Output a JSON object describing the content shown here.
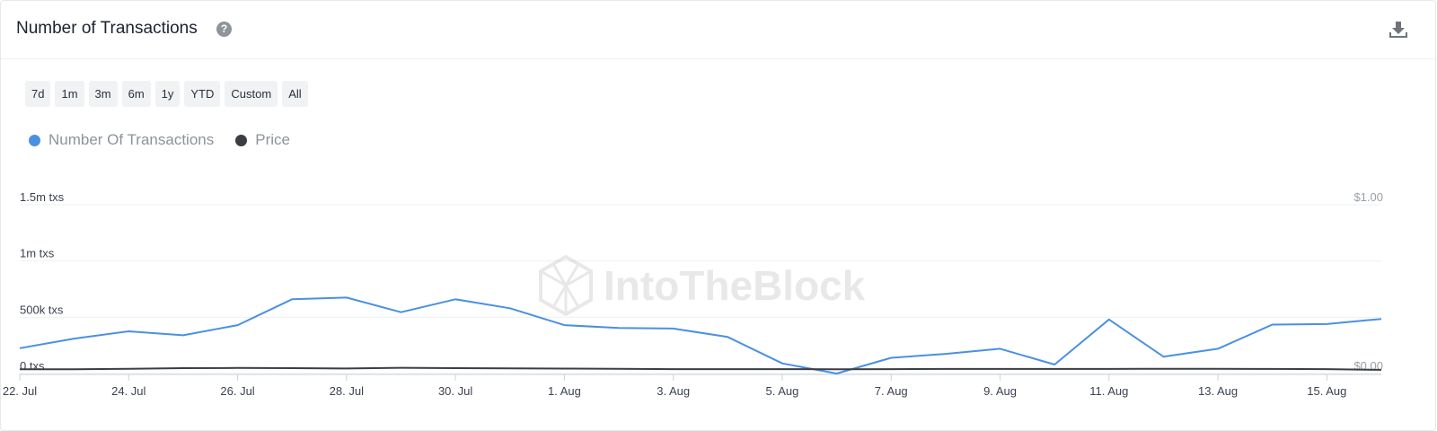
{
  "header": {
    "title": "Number of Transactions",
    "help_icon": "?"
  },
  "ranges": [
    "7d",
    "1m",
    "3m",
    "6m",
    "1y",
    "YTD",
    "Custom",
    "All"
  ],
  "legend": [
    {
      "label": "Number Of Transactions",
      "color": "#4a90e2"
    },
    {
      "label": "Price",
      "color": "#3a3d42"
    }
  ],
  "watermark": "IntoTheBlock",
  "chart_data": {
    "type": "line",
    "title": "Number of Transactions",
    "x": [
      "22. Jul",
      "23. Jul",
      "24. Jul",
      "25. Jul",
      "26. Jul",
      "27. Jul",
      "28. Jul",
      "29. Jul",
      "30. Jul",
      "31. Jul",
      "1. Aug",
      "2. Aug",
      "3. Aug",
      "4. Aug",
      "5. Aug",
      "6. Aug",
      "7. Aug",
      "8. Aug",
      "9. Aug",
      "10. Aug",
      "11. Aug",
      "12. Aug",
      "13. Aug",
      "14. Aug",
      "15. Aug",
      "16. Aug"
    ],
    "x_tick_labels": [
      "22. Jul",
      "24. Jul",
      "26. Jul",
      "28. Jul",
      "30. Jul",
      "1. Aug",
      "3. Aug",
      "5. Aug",
      "7. Aug",
      "9. Aug",
      "11. Aug",
      "13. Aug",
      "15. Aug"
    ],
    "series": [
      {
        "name": "Number Of Transactions",
        "axis": "left",
        "color": "#4a90e2",
        "values": [
          225000,
          310000,
          375000,
          340000,
          430000,
          660000,
          675000,
          545000,
          660000,
          580000,
          430000,
          405000,
          400000,
          325000,
          90000,
          0,
          140000,
          175000,
          220000,
          80000,
          480000,
          150000,
          220000,
          435000,
          440000,
          485000
        ]
      },
      {
        "name": "Price",
        "axis": "right",
        "color": "#3a3d42",
        "values": [
          0.025,
          0.025,
          0.028,
          0.032,
          0.033,
          0.032,
          0.03,
          0.034,
          0.032,
          0.031,
          0.029,
          0.028,
          0.026,
          0.026,
          0.026,
          0.025,
          0.026,
          0.027,
          0.027,
          0.027,
          0.027,
          0.028,
          0.028,
          0.027,
          0.026,
          0.022
        ]
      }
    ],
    "y_left": {
      "ticks": [
        "0 txs",
        "500k txs",
        "1m txs",
        "1.5m txs"
      ],
      "ylim": [
        0,
        1500000
      ]
    },
    "y_right": {
      "ticks": [
        "$0.00",
        "$1.00"
      ],
      "ylim": [
        0,
        1
      ]
    },
    "grid": true
  }
}
